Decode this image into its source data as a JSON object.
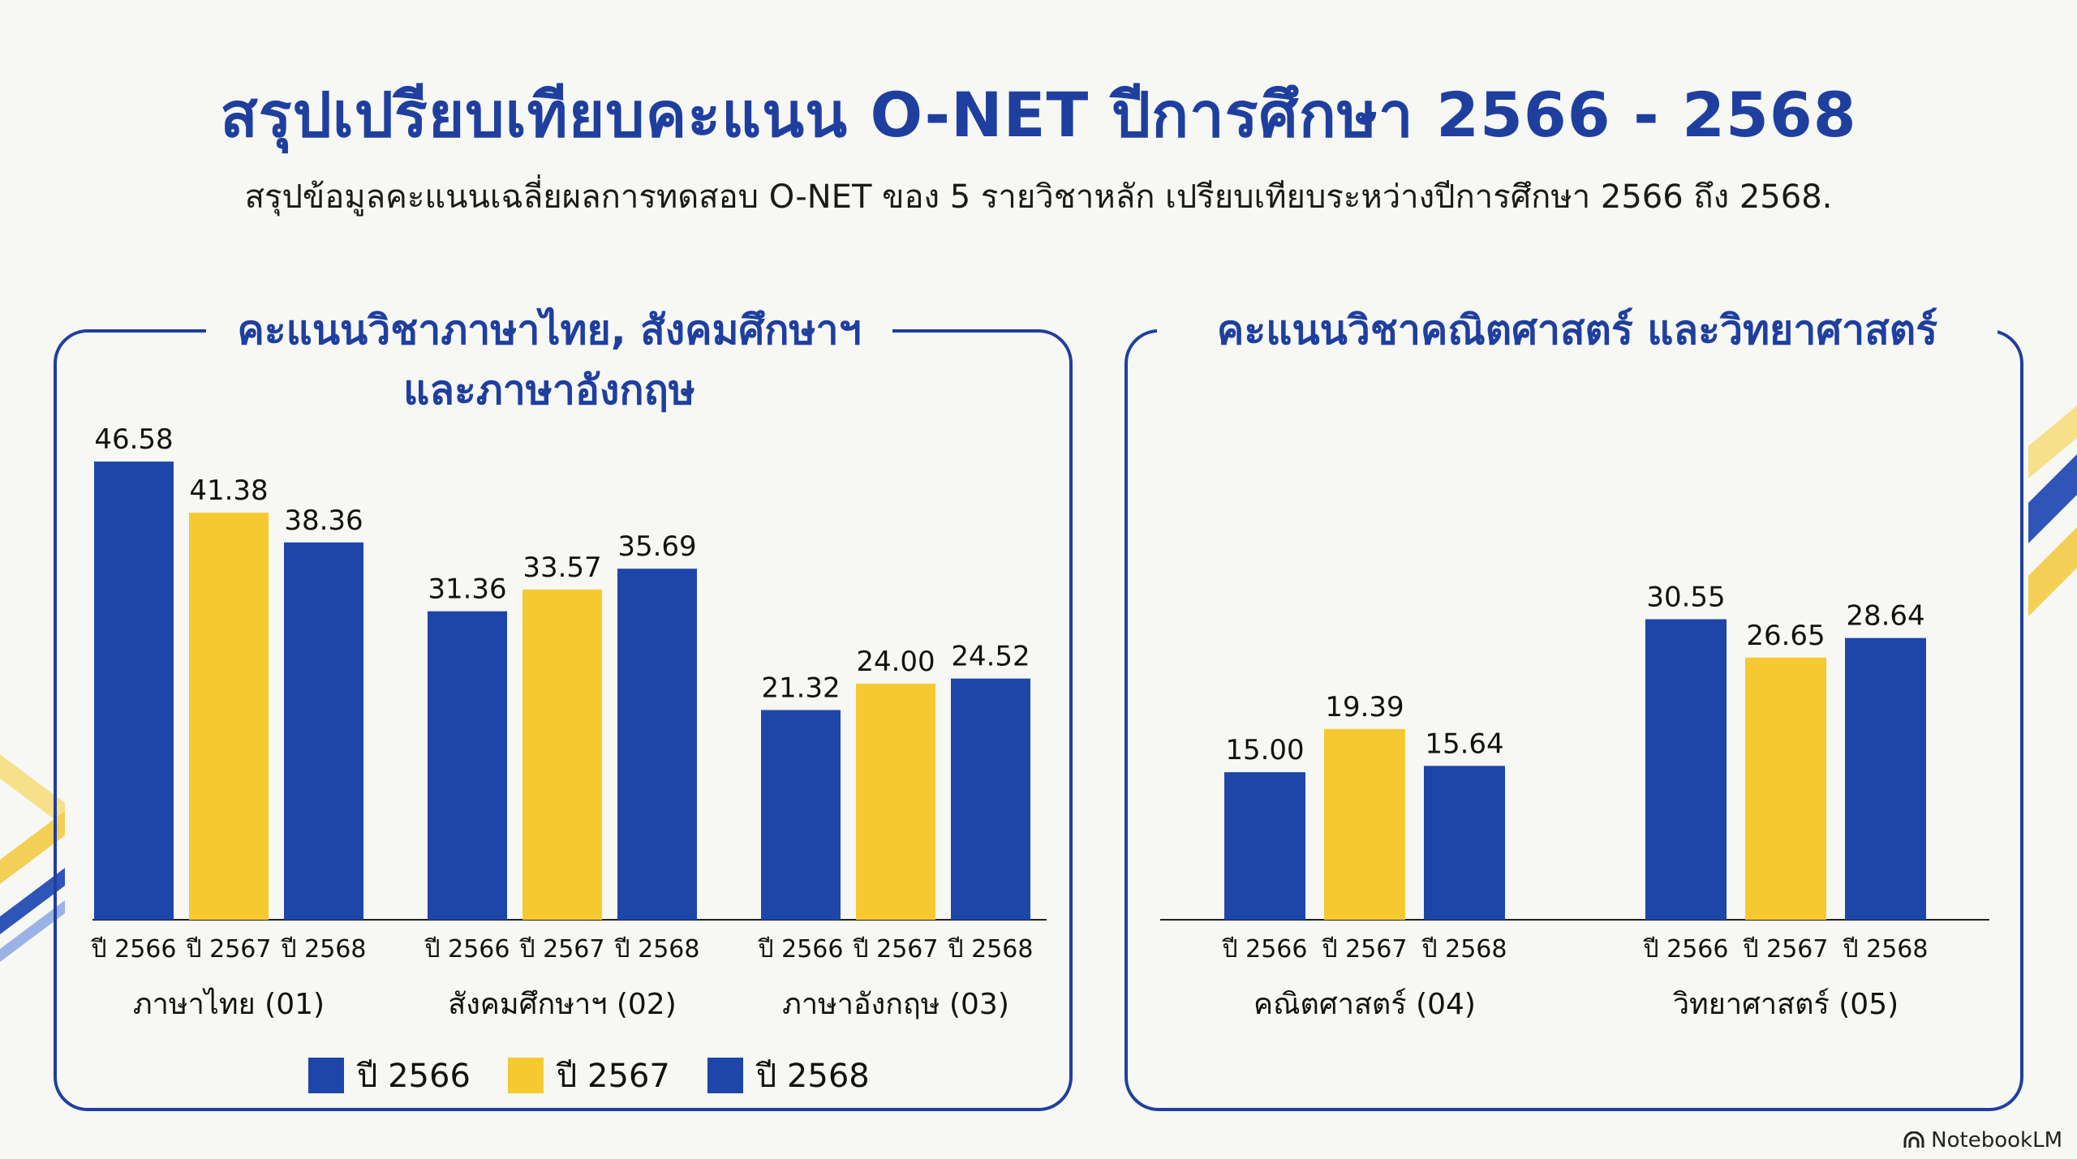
{
  "title": "สรุปเปรียบเทียบคะแนน O-NET ปีการศึกษา 2566 - 2568",
  "subtitle": "สรุปข้อมูลคะแนนเฉลี่ยผลการทดสอบ O-NET ของ 5 รายวิชาหลัก เปรียบเทียบระหว่างปีการศึกษา 2566 ถึง 2568.",
  "colors": {
    "blue": "#1e45a8",
    "yellow": "#f7c931",
    "frame": "#1f3f9f"
  },
  "legend": [
    {
      "label": "ปี 2566",
      "color": "#1e45a8"
    },
    {
      "label": "ปี 2567",
      "color": "#f7c931"
    },
    {
      "label": "ปี 2568",
      "color": "#1e45a8"
    }
  ],
  "brand": {
    "label": "NotebookLM",
    "icon": "notebooklm-logo-icon"
  },
  "chart_data": [
    {
      "type": "bar",
      "title": "คะแนนวิชาภาษาไทย, สังคมศึกษาฯ และภาษาอังกฤษ",
      "title_lines": [
        "คะแนนวิชาภาษาไทย, สังคมศึกษาฯ",
        "และภาษาอังกฤษ"
      ],
      "categories": [
        "ภาษาไทย (01)",
        "สังคมศึกษาฯ (02)",
        "ภาษาอังกฤษ (03)"
      ],
      "series": [
        {
          "name": "ปี 2566",
          "values": [
            46.58,
            31.36,
            21.32
          ],
          "value_labels": [
            "46.58",
            "31.36",
            "21.32"
          ],
          "color": "#1e45a8"
        },
        {
          "name": "ปี 2567",
          "values": [
            41.38,
            33.57,
            24.0
          ],
          "value_labels": [
            "41.38",
            "33.57",
            "24.00"
          ],
          "color": "#f7c931"
        },
        {
          "name": "ปี 2568",
          "values": [
            38.36,
            35.69,
            24.52
          ],
          "value_labels": [
            "38.36",
            "35.69",
            "24.52"
          ],
          "color": "#1e45a8"
        }
      ],
      "ylim": [
        0,
        47
      ],
      "grid": false,
      "legend": "bottom"
    },
    {
      "type": "bar",
      "title": "คะแนนวิชาคณิตศาสตร์ และวิทยาศาสตร์",
      "title_lines": [
        "คะแนนวิชาคณิตศาสตร์ และวิทยาศาสตร์"
      ],
      "categories": [
        "คณิตศาสตร์ (04)",
        "วิทยาศาสตร์ (05)"
      ],
      "series": [
        {
          "name": "ปี 2566",
          "values": [
            15.0,
            30.55
          ],
          "value_labels": [
            "15.00",
            "30.55"
          ],
          "color": "#1e45a8"
        },
        {
          "name": "ปี 2567",
          "values": [
            19.39,
            26.65
          ],
          "value_labels": [
            "19.39",
            "26.65"
          ],
          "color": "#f7c931"
        },
        {
          "name": "ปี 2568",
          "values": [
            15.64,
            28.64
          ],
          "value_labels": [
            "15.64",
            "28.64"
          ],
          "color": "#1e45a8"
        }
      ],
      "ylim": [
        0,
        47
      ],
      "grid": false,
      "legend": "none"
    }
  ]
}
